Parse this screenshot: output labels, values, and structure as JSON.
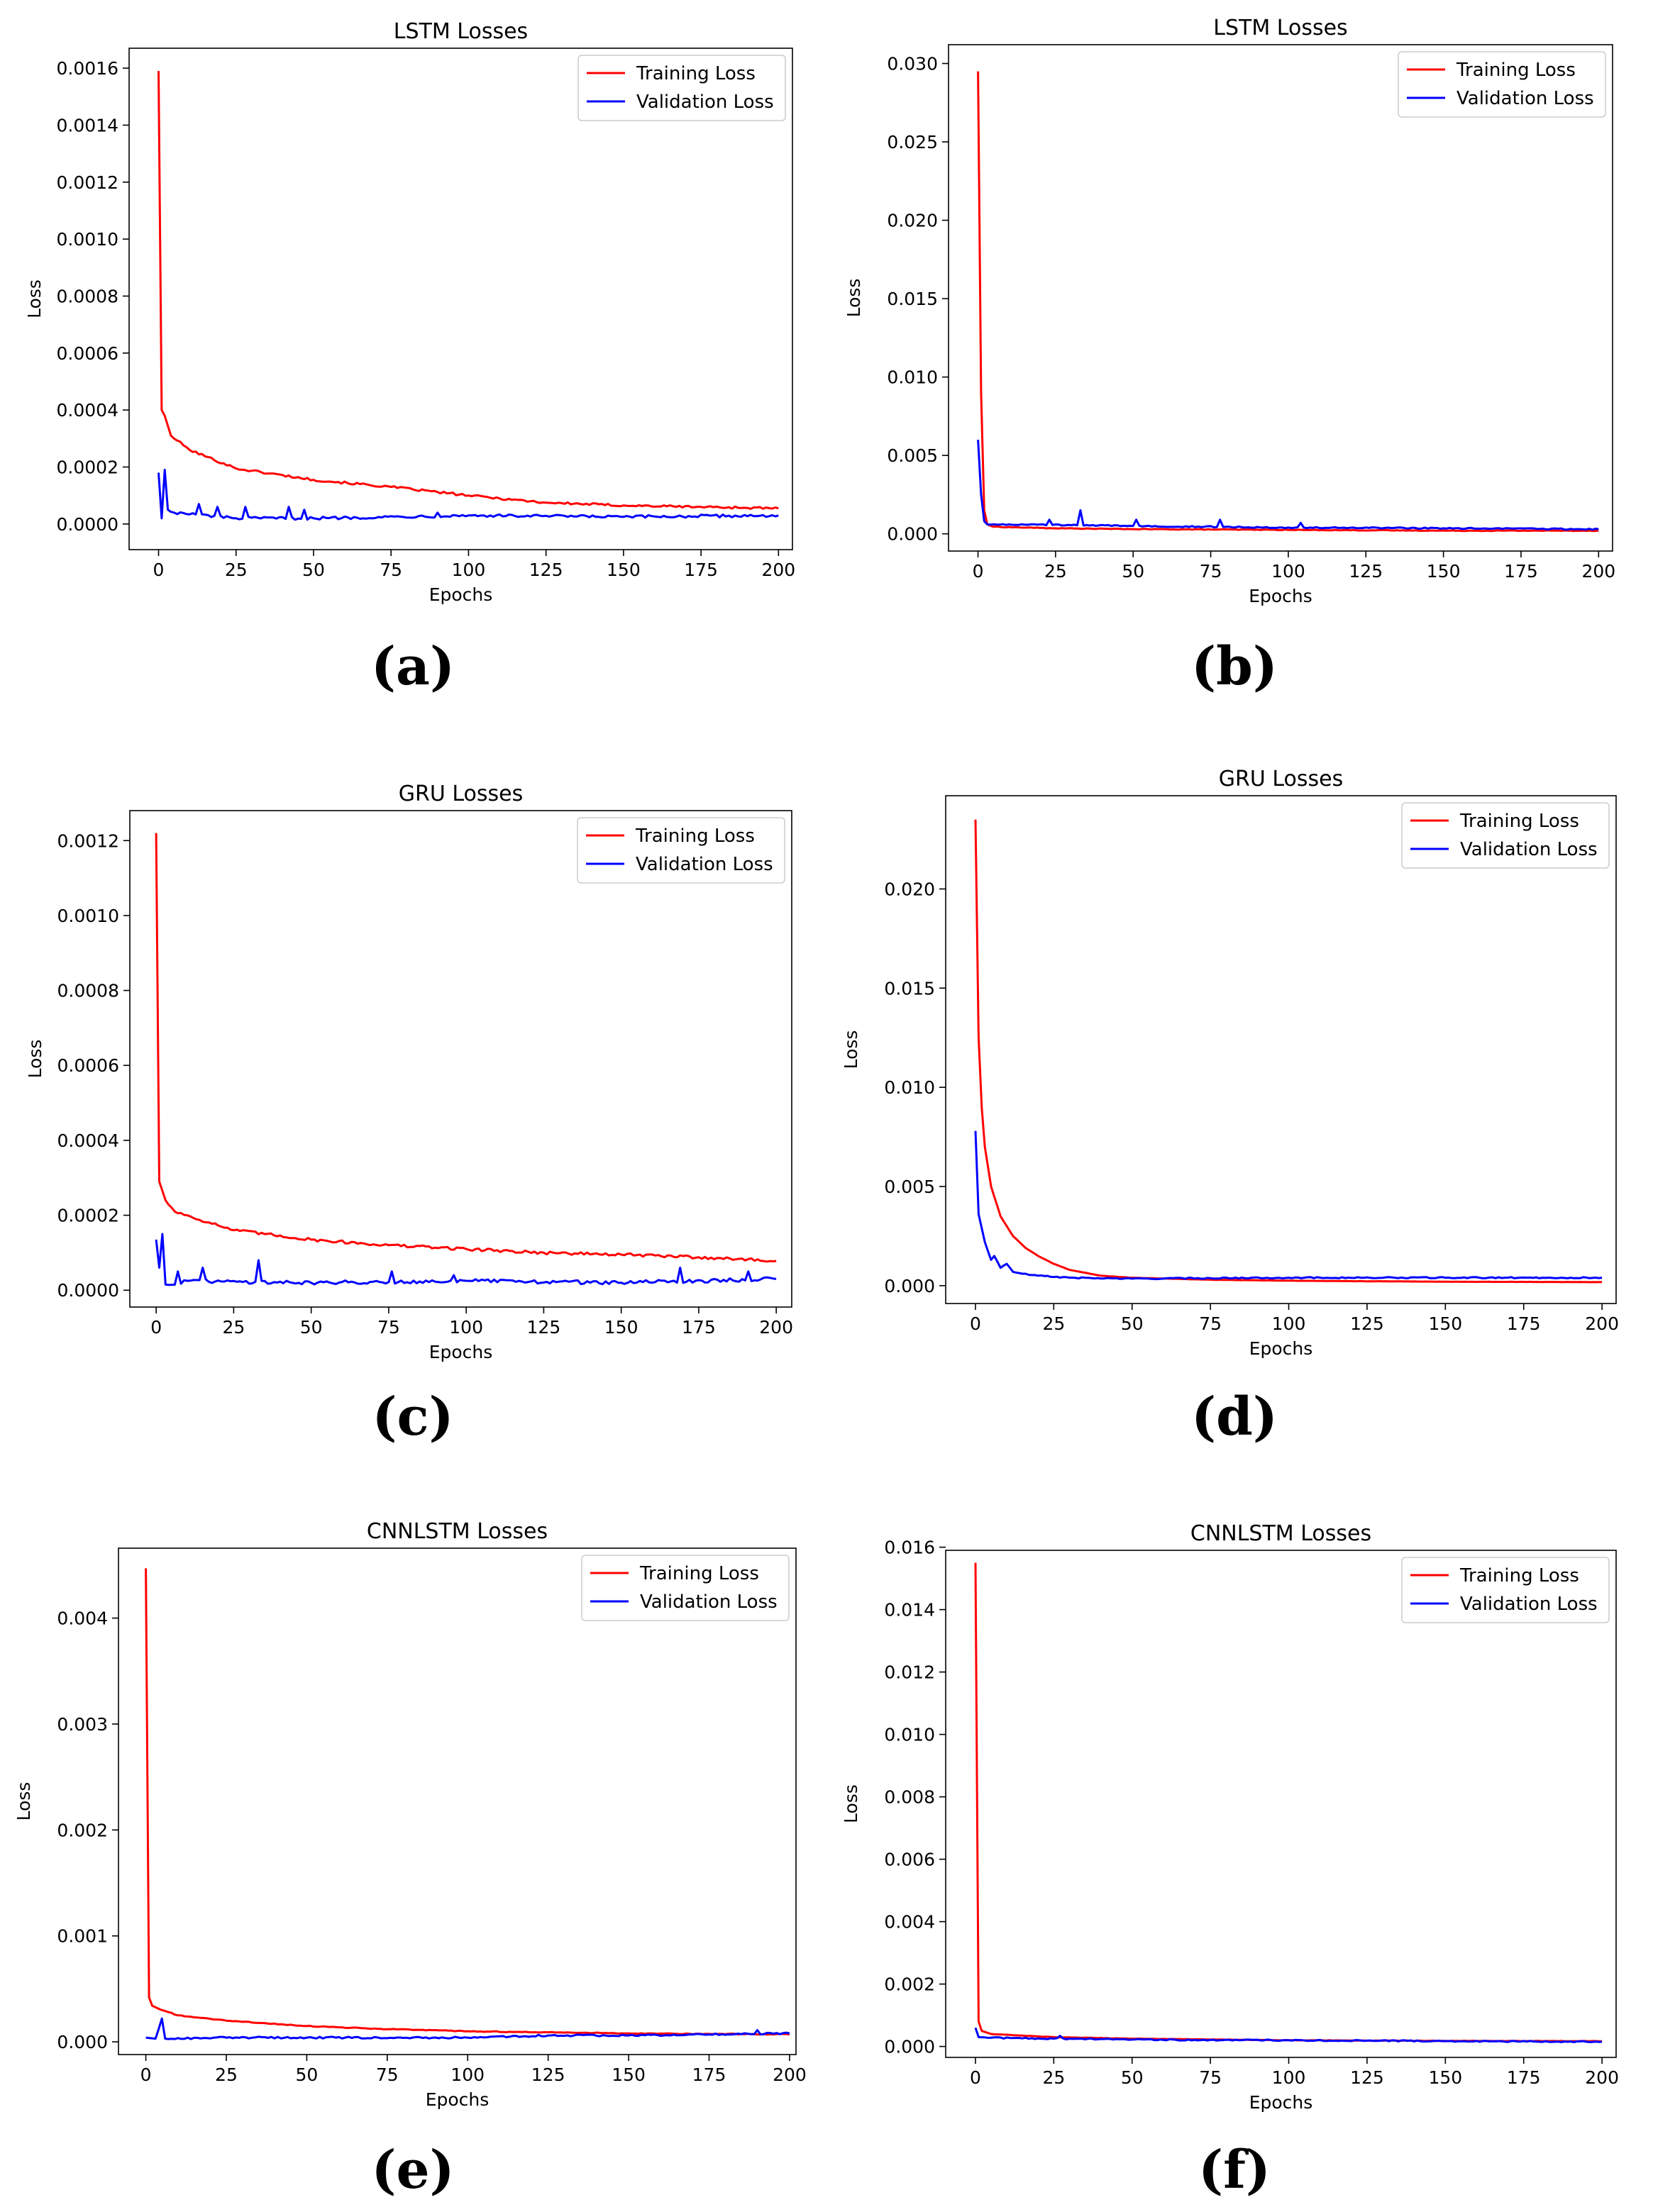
{
  "figure": {
    "panels": [
      "(a)",
      "(b)",
      "(c)",
      "(d)",
      "(e)",
      "(f)"
    ]
  },
  "colors": {
    "training": "#ff0000",
    "validation": "#0000ff"
  },
  "chart_data": [
    {
      "panel": "(a)",
      "type": "line",
      "title": "LSTM Losses",
      "xlabel": "Epochs",
      "ylabel": "Loss",
      "xlim": [
        -9.5,
        204.5
      ],
      "ylim": [
        -9e-05,
        0.00167
      ],
      "xticks": [
        0,
        25,
        50,
        75,
        100,
        125,
        150,
        175,
        200
      ],
      "yticks": [
        0.0,
        0.0002,
        0.0004,
        0.0006,
        0.0008,
        0.001,
        0.0012,
        0.0014,
        0.0016
      ],
      "ytick_labels": [
        "0.0000",
        "0.0002",
        "0.0004",
        "0.0006",
        "0.0008",
        "0.0010",
        "0.0012",
        "0.0014",
        "0.0016"
      ],
      "legend": "top-right",
      "series": [
        {
          "name": "Training Loss",
          "color": "#ff0000",
          "points": [
            [
              0,
              0.00159
            ],
            [
              1,
              0.0004
            ],
            [
              2,
              0.00038
            ],
            [
              4,
              0.00031
            ],
            [
              10,
              0.00026
            ],
            [
              25,
              0.000195
            ],
            [
              50,
              0.000155
            ],
            [
              75,
              0.00013
            ],
            [
              100,
              0.0001
            ],
            [
              125,
              7.5e-05
            ],
            [
              150,
              6.5e-05
            ],
            [
              175,
              6e-05
            ],
            [
              200,
              5.5e-05
            ]
          ],
          "noise": 4e-06
        },
        {
          "name": "Validation Loss",
          "color": "#0000ff",
          "points": [
            [
              0,
              0.00018
            ],
            [
              1,
              2e-05
            ],
            [
              2,
              0.00019
            ],
            [
              3,
              5e-05
            ],
            [
              5,
              4e-05
            ],
            [
              25,
              2e-05
            ],
            [
              50,
              2e-05
            ],
            [
              100,
              3e-05
            ],
            [
              150,
              2.5e-05
            ],
            [
              200,
              3e-05
            ]
          ],
          "noise": 5e-06,
          "spikes": [
            [
              13,
              7e-05
            ],
            [
              19,
              6e-05
            ],
            [
              28,
              6e-05
            ],
            [
              42,
              6e-05
            ],
            [
              47,
              5e-05
            ],
            [
              90,
              4e-05
            ]
          ]
        }
      ]
    },
    {
      "panel": "(b)",
      "type": "line",
      "title": "LSTM Losses",
      "xlabel": "Epochs",
      "ylabel": "Loss",
      "xlim": [
        -9.5,
        204.5
      ],
      "ylim": [
        -0.0011,
        0.0312
      ],
      "xticks": [
        0,
        25,
        50,
        75,
        100,
        125,
        150,
        175,
        200
      ],
      "yticks": [
        0.0,
        0.005,
        0.01,
        0.015,
        0.02,
        0.025,
        0.03
      ],
      "ytick_labels": [
        "0.000",
        "0.005",
        "0.010",
        "0.015",
        "0.020",
        "0.025",
        "0.030"
      ],
      "legend": "top-right",
      "series": [
        {
          "name": "Training Loss",
          "color": "#ff0000",
          "points": [
            [
              0,
              0.0295
            ],
            [
              1,
              0.009
            ],
            [
              2,
              0.0015
            ],
            [
              3,
              0.0006
            ],
            [
              5,
              0.00045
            ],
            [
              25,
              0.00035
            ],
            [
              50,
              0.0003
            ],
            [
              100,
              0.00025
            ],
            [
              150,
              0.0002
            ],
            [
              200,
              0.0002
            ]
          ],
          "noise": 2e-05
        },
        {
          "name": "Validation Loss",
          "color": "#0000ff",
          "points": [
            [
              0,
              0.006
            ],
            [
              1,
              0.0025
            ],
            [
              2,
              0.0008
            ],
            [
              3,
              0.0006
            ],
            [
              10,
              0.0006
            ],
            [
              50,
              0.0005
            ],
            [
              100,
              0.0004
            ],
            [
              150,
              0.00035
            ],
            [
              200,
              0.0003
            ]
          ],
          "noise": 4e-05,
          "spikes": [
            [
              23,
              0.0009
            ],
            [
              33,
              0.0015
            ],
            [
              51,
              0.0009
            ],
            [
              78,
              0.0009
            ],
            [
              104,
              0.0007
            ]
          ]
        }
      ]
    },
    {
      "panel": "(c)",
      "type": "line",
      "title": "GRU Losses",
      "xlabel": "Epochs",
      "ylabel": "Loss",
      "xlim": [
        -8.5,
        205
      ],
      "ylim": [
        -4.5e-05,
        0.00128
      ],
      "xticks": [
        0,
        25,
        50,
        75,
        100,
        125,
        150,
        175,
        200
      ],
      "yticks": [
        0.0,
        0.0002,
        0.0004,
        0.0006,
        0.0008,
        0.001,
        0.0012
      ],
      "ytick_labels": [
        "0.0000",
        "0.0002",
        "0.0004",
        "0.0006",
        "0.0008",
        "0.0010",
        "0.0012"
      ],
      "legend": "top-right",
      "series": [
        {
          "name": "Training Loss",
          "color": "#ff0000",
          "points": [
            [
              0,
              0.00122
            ],
            [
              1,
              0.00029
            ],
            [
              3,
              0.00024
            ],
            [
              6,
              0.00021
            ],
            [
              25,
              0.00016
            ],
            [
              50,
              0.000135
            ],
            [
              75,
              0.00012
            ],
            [
              100,
              0.00011
            ],
            [
              125,
              0.0001
            ],
            [
              150,
              9.5e-05
            ],
            [
              175,
              8.8e-05
            ],
            [
              200,
              7.8e-05
            ]
          ],
          "noise": 4e-06
        },
        {
          "name": "Validation Loss",
          "color": "#0000ff",
          "points": [
            [
              0,
              0.000135
            ],
            [
              1,
              6e-05
            ],
            [
              2,
              0.00015
            ],
            [
              3,
              1.5e-05
            ],
            [
              10,
              2.5e-05
            ],
            [
              50,
              2e-05
            ],
            [
              100,
              2.5e-05
            ],
            [
              150,
              2e-05
            ],
            [
              200,
              3e-05
            ]
          ],
          "noise": 5e-06,
          "spikes": [
            [
              7,
              5e-05
            ],
            [
              15,
              6e-05
            ],
            [
              33,
              8e-05
            ],
            [
              76,
              5e-05
            ],
            [
              96,
              4e-05
            ],
            [
              169,
              6e-05
            ],
            [
              191,
              5e-05
            ]
          ]
        }
      ]
    },
    {
      "panel": "(d)",
      "type": "line",
      "title": "GRU Losses",
      "xlabel": "Epochs",
      "ylabel": "Loss",
      "xlim": [
        -9.5,
        204.5
      ],
      "ylim": [
        -0.0009,
        0.0247
      ],
      "xticks": [
        0,
        25,
        50,
        75,
        100,
        125,
        150,
        175,
        200
      ],
      "yticks": [
        0.0,
        0.005,
        0.01,
        0.015,
        0.02
      ],
      "ytick_labels": [
        "0.000",
        "0.005",
        "0.010",
        "0.015",
        "0.020"
      ],
      "legend": "top-right",
      "series": [
        {
          "name": "Training Loss",
          "color": "#ff0000",
          "points": [
            [
              0,
              0.0235
            ],
            [
              1,
              0.0125
            ],
            [
              2,
              0.009
            ],
            [
              3,
              0.007
            ],
            [
              5,
              0.005
            ],
            [
              8,
              0.0035
            ],
            [
              12,
              0.0025
            ],
            [
              16,
              0.0019
            ],
            [
              20,
              0.0015
            ],
            [
              25,
              0.0011
            ],
            [
              30,
              0.0008
            ],
            [
              40,
              0.0005
            ],
            [
              50,
              0.0004
            ],
            [
              75,
              0.0003
            ],
            [
              100,
              0.00025
            ],
            [
              150,
              0.0002
            ],
            [
              200,
              0.00018
            ]
          ],
          "noise": 5e-06
        },
        {
          "name": "Validation Loss",
          "color": "#0000ff",
          "points": [
            [
              0,
              0.0078
            ],
            [
              1,
              0.0036
            ],
            [
              3,
              0.0022
            ],
            [
              5,
              0.0013
            ],
            [
              6,
              0.0015
            ],
            [
              8,
              0.0009
            ],
            [
              10,
              0.0011
            ],
            [
              12,
              0.0007
            ],
            [
              15,
              0.0006
            ],
            [
              20,
              0.0005
            ],
            [
              30,
              0.0004
            ],
            [
              50,
              0.00035
            ],
            [
              75,
              0.00038
            ],
            [
              100,
              0.0004
            ],
            [
              150,
              0.0004
            ],
            [
              200,
              0.0004
            ]
          ],
          "noise": 3e-05
        }
      ]
    },
    {
      "panel": "(e)",
      "type": "line",
      "title": "CNNLSTM Losses",
      "xlabel": "Epochs",
      "ylabel": "Loss",
      "xlim": [
        -8.5,
        202
      ],
      "ylim": [
        -0.00012,
        0.00466
      ],
      "xticks": [
        0,
        25,
        50,
        75,
        100,
        125,
        150,
        175,
        200
      ],
      "yticks": [
        0.0,
        0.001,
        0.002,
        0.003,
        0.004
      ],
      "ytick_labels": [
        "0.000",
        "0.001",
        "0.002",
        "0.003",
        "0.004"
      ],
      "legend": "top-right",
      "series": [
        {
          "name": "Training Loss",
          "color": "#ff0000",
          "points": [
            [
              0,
              0.00447
            ],
            [
              1,
              0.00042
            ],
            [
              2,
              0.00034
            ],
            [
              5,
              0.0003
            ],
            [
              10,
              0.00025
            ],
            [
              25,
              0.0002
            ],
            [
              50,
              0.00015
            ],
            [
              75,
              0.00012
            ],
            [
              100,
              0.0001
            ],
            [
              125,
              9e-05
            ],
            [
              150,
              8e-05
            ],
            [
              175,
              7.5e-05
            ],
            [
              200,
              7e-05
            ]
          ],
          "noise": 4e-06
        },
        {
          "name": "Validation Loss",
          "color": "#0000ff",
          "points": [
            [
              0,
              4e-05
            ],
            [
              3,
              3e-05
            ],
            [
              5,
              0.00022
            ],
            [
              6,
              3e-05
            ],
            [
              25,
              4e-05
            ],
            [
              50,
              4e-05
            ],
            [
              100,
              4e-05
            ],
            [
              125,
              6e-05
            ],
            [
              150,
              6e-05
            ],
            [
              175,
              7e-05
            ],
            [
              200,
              8e-05
            ]
          ],
          "noise": 8e-06,
          "spikes": [
            [
              190,
              0.00011
            ]
          ]
        }
      ]
    },
    {
      "panel": "(f)",
      "type": "line",
      "title": "CNNLSTM Losses",
      "xlabel": "Epochs",
      "ylabel": "Loss",
      "xlim": [
        -9.5,
        204.5
      ],
      "ylim": [
        -0.00035,
        0.0159
      ],
      "xticks": [
        0,
        25,
        50,
        75,
        100,
        125,
        150,
        175,
        200
      ],
      "yticks": [
        0.0,
        0.002,
        0.004,
        0.006,
        0.008,
        0.01,
        0.012,
        0.014,
        0.016
      ],
      "ytick_labels": [
        "0.000",
        "0.002",
        "0.004",
        "0.006",
        "0.008",
        "0.010",
        "0.012",
        "0.014",
        "0.016"
      ],
      "legend": "top-right",
      "series": [
        {
          "name": "Training Loss",
          "color": "#ff0000",
          "points": [
            [
              0,
              0.0155
            ],
            [
              1,
              0.0008
            ],
            [
              2,
              0.0005
            ],
            [
              5,
              0.0004
            ],
            [
              25,
              0.0003
            ],
            [
              50,
              0.00025
            ],
            [
              100,
              0.0002
            ],
            [
              150,
              0.00018
            ],
            [
              200,
              0.00017
            ]
          ],
          "noise": 5e-06
        },
        {
          "name": "Validation Loss",
          "color": "#0000ff",
          "points": [
            [
              0,
              0.0006
            ],
            [
              1,
              0.0003
            ],
            [
              5,
              0.00028
            ],
            [
              25,
              0.00025
            ],
            [
              50,
              0.00022
            ],
            [
              100,
              0.0002
            ],
            [
              150,
              0.00017
            ],
            [
              200,
              0.00015
            ]
          ],
          "noise": 2e-05,
          "spikes": [
            [
              27,
              0.00034
            ]
          ]
        }
      ]
    }
  ]
}
